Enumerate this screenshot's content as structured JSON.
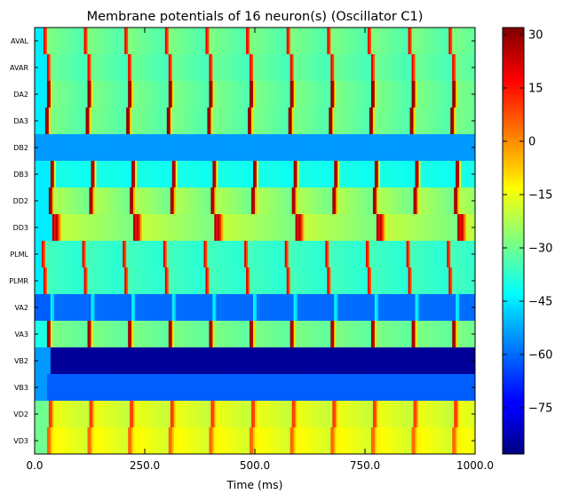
{
  "chart_data": {
    "type": "heatmap",
    "title": "Membrane potentials of 16 neuron(s) (Oscillator C1)",
    "xlabel": "Time (ms)",
    "ylabel": "",
    "xlim": [
      0,
      1000
    ],
    "x_ticks": [
      "0.0",
      "250.0",
      "500.0",
      "750.0",
      "1000.0"
    ],
    "x_tick_values": [
      0,
      250,
      500,
      750,
      1000
    ],
    "rows": [
      "AVAL",
      "AVAR",
      "DA2",
      "DA3",
      "DB2",
      "DB3",
      "DD2",
      "DD3",
      "PLML",
      "PLMR",
      "VA2",
      "VA3",
      "VB2",
      "VB3",
      "VD2",
      "VD3"
    ],
    "colorbar": {
      "colormap": "jet",
      "range": [
        -88,
        32
      ],
      "ticks": [
        "30",
        "15",
        "0",
        "−15",
        "−30",
        "−45",
        "−60",
        "−75"
      ],
      "tick_values": [
        30,
        15,
        0,
        -15,
        -30,
        -45,
        -60,
        -75
      ]
    },
    "row_patterns": [
      {
        "neuron": "AVAL",
        "kind": "spiking",
        "baseline": -45,
        "first_spike_ms": 20,
        "period_ms": 92,
        "peak": 30,
        "plateau": -28
      },
      {
        "neuron": "AVAR",
        "kind": "spiking",
        "baseline": -45,
        "first_spike_ms": 28,
        "period_ms": 92,
        "peak": 30,
        "plateau": -30
      },
      {
        "neuron": "DA2",
        "kind": "spiking",
        "baseline": -45,
        "first_spike_ms": 30,
        "period_ms": 92,
        "peak": 30,
        "plateau": -28
      },
      {
        "neuron": "DA3",
        "kind": "spiking",
        "baseline": -45,
        "first_spike_ms": 26,
        "period_ms": 92,
        "peak": 30,
        "plateau": -28
      },
      {
        "neuron": "DB2",
        "kind": "flat",
        "value": -55
      },
      {
        "neuron": "DB3",
        "kind": "spiking",
        "baseline": -45,
        "first_spike_ms": 38,
        "period_ms": 92,
        "peak": 28,
        "plateau": -40
      },
      {
        "neuron": "DD2",
        "kind": "spiking",
        "baseline": -45,
        "first_spike_ms": 34,
        "period_ms": 92,
        "peak": 28,
        "plateau": -22
      },
      {
        "neuron": "DD3",
        "kind": "spiking",
        "baseline": -45,
        "first_spike_ms": 42,
        "period_ms": 184,
        "peak": 28,
        "plateau": -20
      },
      {
        "neuron": "PLML",
        "kind": "spiking",
        "baseline": -45,
        "first_spike_ms": 16,
        "period_ms": 92,
        "peak": 32,
        "plateau": -35
      },
      {
        "neuron": "PLMR",
        "kind": "spiking",
        "baseline": -45,
        "first_spike_ms": 20,
        "period_ms": 92,
        "peak": 32,
        "plateau": -35
      },
      {
        "neuron": "VA2",
        "kind": "spiking",
        "baseline": -62,
        "first_spike_ms": 36,
        "period_ms": 92,
        "peak": -40,
        "plateau": -60
      },
      {
        "neuron": "VA3",
        "kind": "spiking",
        "baseline": -40,
        "first_spike_ms": 30,
        "period_ms": 92,
        "peak": 28,
        "plateau": -28
      },
      {
        "neuron": "VB2",
        "kind": "step",
        "value_before": -55,
        "value_after": -85,
        "step_ms": 36
      },
      {
        "neuron": "VB3",
        "kind": "step",
        "value_before": -55,
        "value_after": -62,
        "step_ms": 28
      },
      {
        "neuron": "VD2",
        "kind": "spiking",
        "baseline": -30,
        "first_spike_ms": 34,
        "period_ms": 92,
        "peak": 10,
        "plateau": -15
      },
      {
        "neuron": "VD3",
        "kind": "spiking",
        "baseline": -30,
        "first_spike_ms": 30,
        "period_ms": 92,
        "peak": 5,
        "plateau": -12
      }
    ]
  }
}
